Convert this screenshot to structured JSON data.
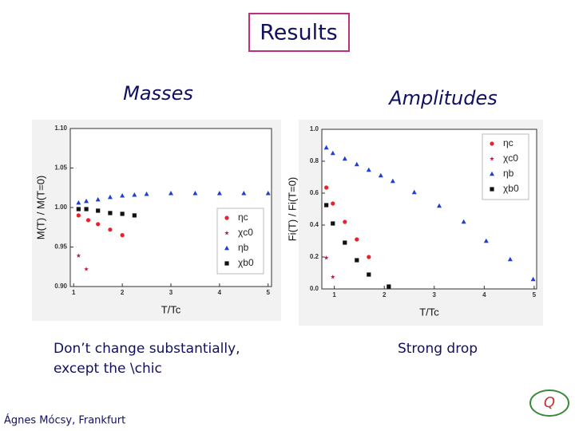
{
  "title": "Results",
  "left_heading": "Masses",
  "right_heading": "Amplitudes",
  "left_caption": [
    "Don’t change substantially,",
    "except the \\chic"
  ],
  "right_caption": "Strong drop",
  "footer": "Ágnes Mócsy, Frankfurt",
  "chart_data": [
    {
      "type": "scatter",
      "ylabel": "M(T) / M(T=0)",
      "xlabel": "T/Tc",
      "xlim": [
        0.93,
        5.07
      ],
      "xticks": [
        1,
        2,
        3,
        4,
        5
      ],
      "ylim": [
        0.9,
        1.1
      ],
      "yticks": [
        {
          "value": 0.9,
          "label": "0.90"
        },
        0.95,
        {
          "value": 1.0,
          "label": "1.00"
        },
        1.05,
        {
          "value": 1.1,
          "label": "1.10"
        }
      ],
      "legend": "lower right",
      "series": [
        {
          "name": "ηc",
          "color": "#e8222a",
          "marker": "circle",
          "x": [
            1.1,
            1.3,
            1.5,
            1.75,
            2.0
          ],
          "values": [
            0.99,
            0.984,
            0.979,
            0.972,
            0.965
          ]
        },
        {
          "name": "χc0",
          "color": "#b02040",
          "marker": "star",
          "x": [
            1.1,
            1.26
          ],
          "values": [
            0.939,
            0.922
          ]
        },
        {
          "name": "ηb",
          "color": "#1f3fd0",
          "marker": "triangle",
          "x": [
            1.1,
            1.26,
            1.5,
            1.75,
            2.0,
            2.25,
            2.5,
            3,
            3.5,
            4,
            4.5,
            5
          ],
          "values": [
            1.006,
            1.008,
            1.01,
            1.013,
            1.015,
            1.016,
            1.017,
            1.018,
            1.018,
            1.018,
            1.018,
            1.018
          ]
        },
        {
          "name": "χb0",
          "color": "#111111",
          "marker": "square",
          "x": [
            1.1,
            1.26,
            1.5,
            1.75,
            2.0,
            2.25
          ],
          "values": [
            0.998,
            0.998,
            0.996,
            0.993,
            0.992,
            0.99
          ]
        }
      ]
    },
    {
      "type": "scatter",
      "ylabel": "Fi(T) / Fi(T=0)",
      "xlabel": "T/Tc",
      "xlim": [
        0.75,
        5.05
      ],
      "xticks": [
        1,
        2,
        3,
        4,
        5
      ],
      "ylim": [
        0,
        1
      ],
      "yticks": [
        {
          "value": 0,
          "label": "0.0"
        },
        0.2,
        0.4,
        0.6,
        0.8,
        {
          "value": 1,
          "label": "1.0"
        }
      ],
      "legend": "upper right",
      "series": [
        {
          "name": "ηc",
          "color": "#e8222a",
          "marker": "circle",
          "x": [
            0.84,
            0.97,
            1.21,
            1.45,
            1.69
          ],
          "values": [
            0.635,
            0.535,
            0.42,
            0.31,
            0.2
          ]
        },
        {
          "name": "χc0",
          "color": "#b02040",
          "marker": "star",
          "x": [
            0.84,
            0.97
          ],
          "values": [
            0.195,
            0.075
          ]
        },
        {
          "name": "ηb",
          "color": "#1f3fd0",
          "marker": "triangle",
          "x": [
            0.84,
            0.97,
            1.21,
            1.45,
            1.69,
            1.93,
            2.17,
            2.6,
            3.1,
            3.59,
            4.04,
            4.52,
            4.98
          ],
          "values": [
            0.885,
            0.85,
            0.815,
            0.78,
            0.745,
            0.71,
            0.675,
            0.605,
            0.52,
            0.42,
            0.3,
            0.185,
            0.06
          ]
        },
        {
          "name": "χb0",
          "color": "#111111",
          "marker": "square",
          "x": [
            0.84,
            0.97,
            1.21,
            1.45,
            1.69,
            2.09
          ],
          "values": [
            0.525,
            0.41,
            0.29,
            0.18,
            0.09,
            0.015
          ]
        }
      ]
    }
  ]
}
